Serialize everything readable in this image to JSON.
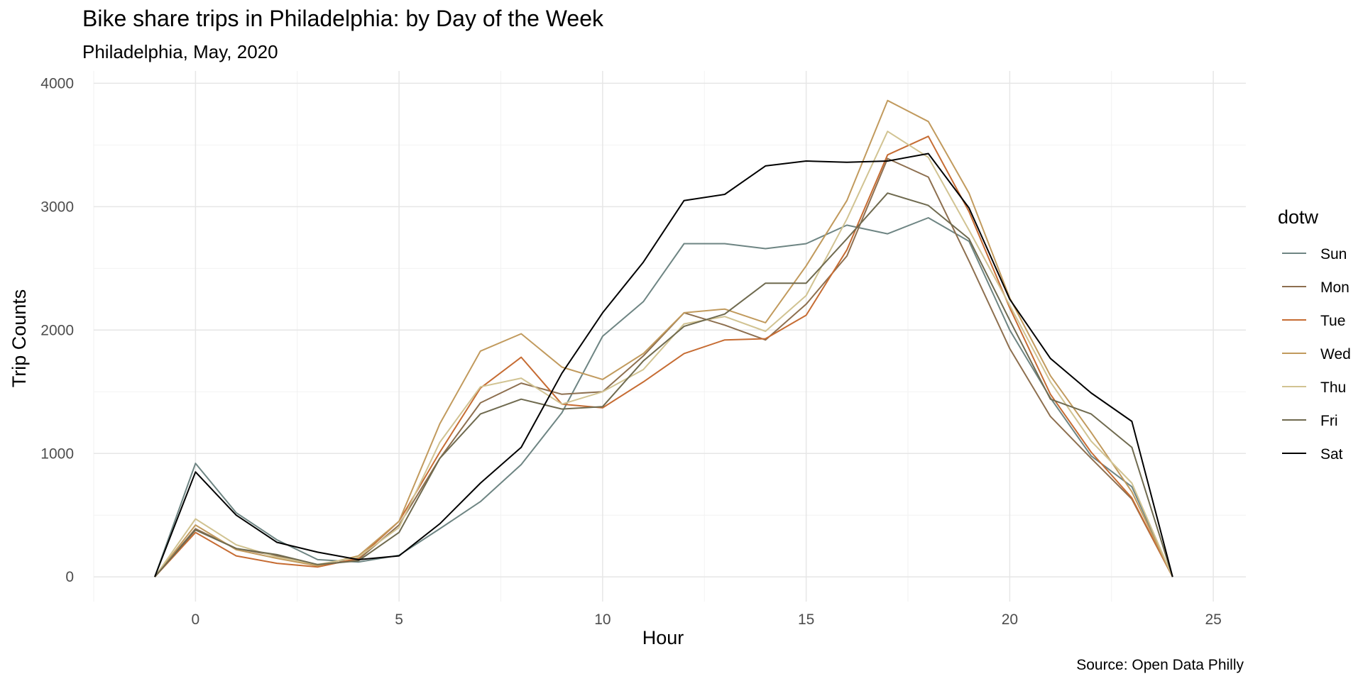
{
  "chart_data": {
    "type": "line",
    "title": "Bike share trips in Philadelphia: by Day of the Week",
    "subtitle": "Philadelphia, May, 2020",
    "caption": "Source: Open Data Philly",
    "xlabel": "Hour",
    "ylabel": "Trip Counts",
    "xlim": [
      -2.5,
      25.8
    ],
    "ylim": [
      -200,
      4100
    ],
    "xticks": [
      0,
      5,
      10,
      15,
      20,
      25
    ],
    "yticks": [
      0,
      1000,
      2000,
      3000,
      4000
    ],
    "grid": true,
    "legend": {
      "title": "dotw",
      "position": "right"
    },
    "x": [
      -1,
      0,
      1,
      2,
      3,
      4,
      5,
      6,
      7,
      8,
      9,
      10,
      11,
      12,
      13,
      14,
      15,
      16,
      17,
      18,
      19,
      20,
      21,
      22,
      23,
      24
    ],
    "series": [
      {
        "name": "Sun",
        "color": "#6e8583",
        "values": [
          0,
          920,
          520,
          300,
          140,
          120,
          175,
          390,
          610,
          910,
          1330,
          1950,
          2230,
          2700,
          2700,
          2660,
          2700,
          2850,
          2780,
          2910,
          2720,
          2000,
          1450,
          980,
          730,
          0
        ]
      },
      {
        "name": "Mon",
        "color": "#8d6f4f",
        "values": [
          0,
          390,
          230,
          170,
          90,
          140,
          420,
          960,
          1410,
          1570,
          1480,
          1500,
          1790,
          2140,
          2040,
          1920,
          2210,
          2600,
          3390,
          3240,
          2560,
          1850,
          1300,
          960,
          630,
          0
        ]
      },
      {
        "name": "Tue",
        "color": "#c66c33",
        "values": [
          0,
          360,
          170,
          110,
          80,
          150,
          450,
          1010,
          1530,
          1780,
          1400,
          1370,
          1580,
          1810,
          1920,
          1930,
          2120,
          2650,
          3420,
          3570,
          2960,
          2180,
          1480,
          1010,
          640,
          0
        ]
      },
      {
        "name": "Wed",
        "color": "#c19a5d",
        "values": [
          0,
          420,
          220,
          150,
          90,
          170,
          450,
          1240,
          1830,
          1970,
          1700,
          1600,
          1810,
          2140,
          2170,
          2060,
          2520,
          3050,
          3860,
          3690,
          3110,
          2260,
          1630,
          1170,
          690,
          0
        ]
      },
      {
        "name": "Thu",
        "color": "#d1c392",
        "values": [
          0,
          470,
          260,
          160,
          100,
          160,
          400,
          1090,
          1540,
          1610,
          1400,
          1500,
          1680,
          2050,
          2110,
          1990,
          2280,
          2900,
          3610,
          3400,
          2810,
          2200,
          1580,
          1100,
          760,
          0
        ]
      },
      {
        "name": "Fri",
        "color": "#6f6a4f",
        "values": [
          0,
          380,
          230,
          180,
          100,
          130,
          360,
          960,
          1320,
          1440,
          1360,
          1380,
          1750,
          2030,
          2130,
          2380,
          2380,
          2740,
          3110,
          3010,
          2740,
          2080,
          1440,
          1320,
          1050,
          0
        ]
      },
      {
        "name": "Sat",
        "color": "#000000",
        "values": [
          0,
          850,
          500,
          280,
          200,
          140,
          170,
          430,
          760,
          1050,
          1650,
          2140,
          2550,
          3050,
          3100,
          3330,
          3370,
          3360,
          3370,
          3430,
          2990,
          2250,
          1770,
          1490,
          1260,
          0
        ]
      }
    ]
  }
}
